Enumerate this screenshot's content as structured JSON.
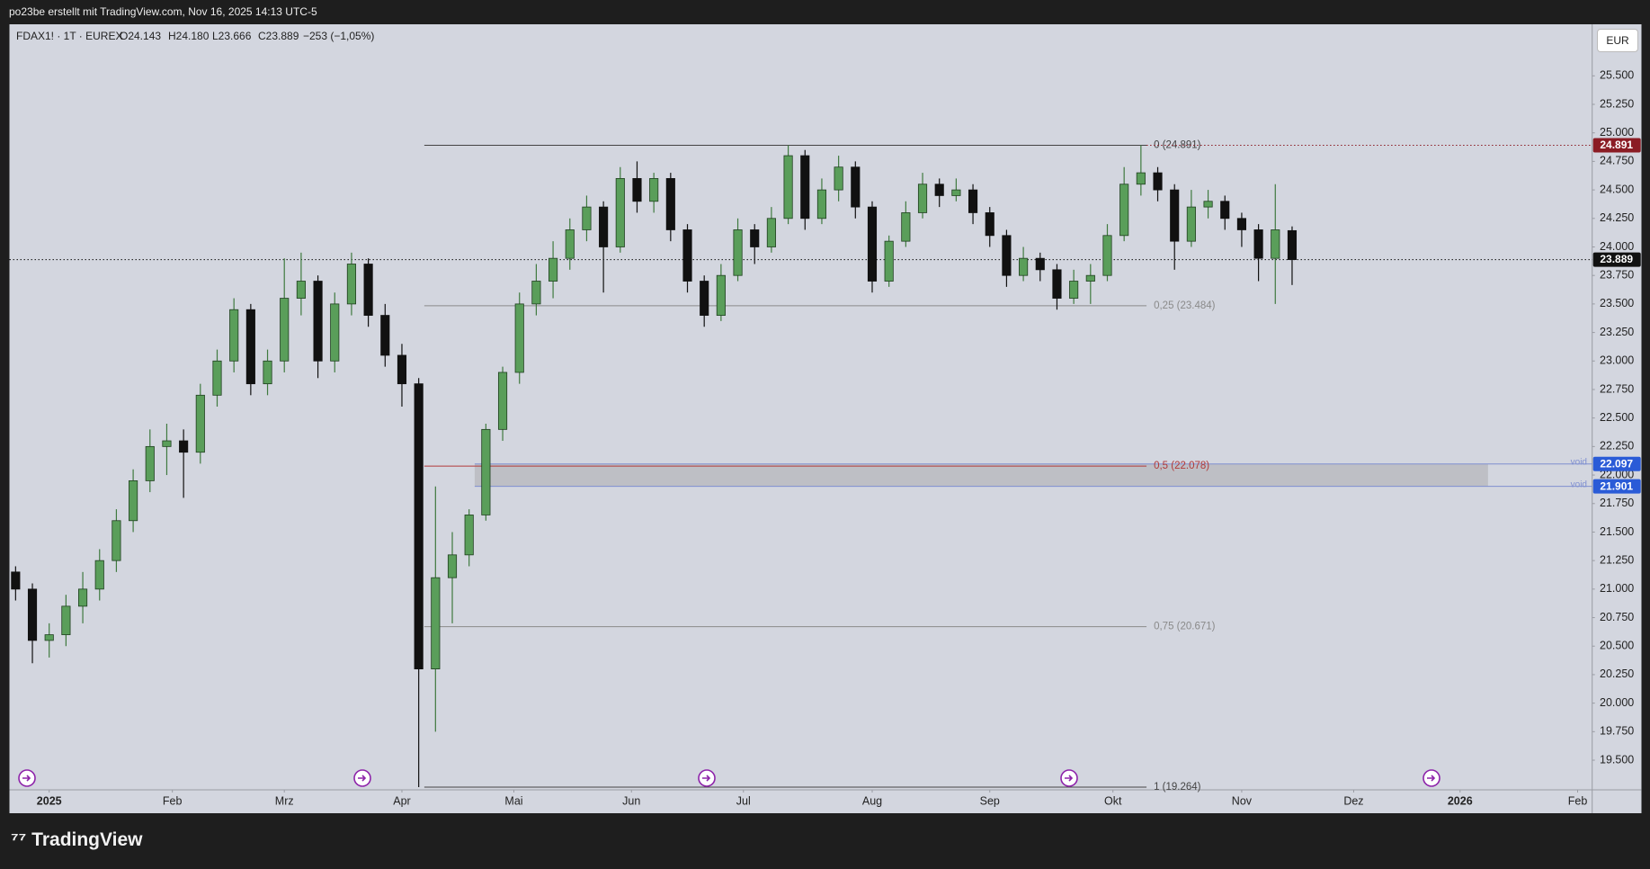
{
  "top_bar": {
    "text": "po23be erstellt mit TradingView.com, Nov 16, 2025 14:13 UTC-5"
  },
  "footer": {
    "logo": "TradingView"
  },
  "currency_button": "EUR",
  "chart_data": {
    "type": "candlestick",
    "header": {
      "symbol": "FDAX1! · 1T · EUREX",
      "open": "O24.143",
      "high": "H24.180",
      "low": "L23.666",
      "close": "C23.889",
      "change": "−253 (−1,05%)"
    },
    "up_color": "#5a9e5a",
    "down_color": "#111111",
    "x": [
      -6,
      -3,
      0,
      3,
      6,
      9,
      12,
      15,
      18,
      21,
      24,
      27,
      30,
      33,
      36,
      39,
      42,
      45,
      48,
      51,
      54,
      57,
      60,
      63,
      66,
      69,
      72,
      75,
      78,
      81,
      84,
      87,
      90,
      93,
      96,
      99,
      102,
      105,
      108,
      111,
      114,
      117,
      120,
      123,
      126,
      129,
      132,
      135,
      138,
      141,
      144,
      147,
      150,
      153,
      156,
      159,
      162,
      165,
      168,
      171,
      174,
      177,
      180,
      183,
      186,
      189,
      192,
      195,
      198,
      201,
      204,
      207,
      210,
      213,
      216,
      219,
      222
    ],
    "open": [
      21150,
      21000,
      20550,
      20600,
      20850,
      21000,
      21250,
      21600,
      21950,
      22250,
      22300,
      22200,
      22700,
      23000,
      23450,
      22800,
      23000,
      23550,
      23700,
      23000,
      23500,
      23850,
      23400,
      23050,
      22800,
      20300,
      21100,
      21300,
      21650,
      22400,
      22900,
      23500,
      23700,
      23900,
      24150,
      24350,
      24000,
      24600,
      24400,
      24600,
      24150,
      23700,
      23400,
      23750,
      24150,
      24000,
      24250,
      24800,
      24250,
      24500,
      24700,
      24350,
      23700,
      24050,
      24300,
      24550,
      24450,
      24500,
      24300,
      24100,
      23750,
      23900,
      23800,
      23550,
      23700,
      23750,
      24100,
      24550,
      24650,
      24500,
      24050,
      24350,
      24400,
      24250,
      24150,
      23900,
      24143
    ],
    "high": [
      21200,
      21050,
      20700,
      20950,
      21150,
      21350,
      21700,
      22050,
      22400,
      22450,
      22400,
      22800,
      23100,
      23550,
      23500,
      23100,
      23900,
      23950,
      23750,
      23600,
      23950,
      23900,
      23500,
      23150,
      22850,
      21900,
      21500,
      21700,
      22450,
      22950,
      23600,
      23850,
      24050,
      24250,
      24450,
      24400,
      24700,
      24750,
      24650,
      24650,
      24200,
      23750,
      23850,
      24250,
      24200,
      24350,
      24891,
      24850,
      24600,
      24800,
      24750,
      24400,
      24100,
      24400,
      24650,
      24600,
      24600,
      24550,
      24350,
      24150,
      24000,
      23950,
      23850,
      23800,
      23850,
      24200,
      24700,
      24891,
      24700,
      24550,
      24500,
      24500,
      24450,
      24300,
      24200,
      24550,
      24180
    ],
    "low": [
      20900,
      20350,
      20400,
      20500,
      20700,
      20900,
      21150,
      21500,
      21850,
      22000,
      21800,
      22100,
      22600,
      22900,
      22700,
      22700,
      22900,
      23400,
      22850,
      22900,
      23400,
      23300,
      22950,
      22600,
      19264,
      19750,
      20700,
      21200,
      21600,
      22300,
      22800,
      23400,
      23550,
      23800,
      24050,
      23600,
      23950,
      24300,
      24300,
      24050,
      23600,
      23300,
      23350,
      23700,
      23850,
      23950,
      24200,
      24150,
      24200,
      24400,
      24250,
      23600,
      23650,
      24000,
      24250,
      24350,
      24400,
      24200,
      24000,
      23650,
      23700,
      23700,
      23450,
      23500,
      23500,
      23700,
      24050,
      24450,
      24400,
      23800,
      24000,
      24250,
      24150,
      24000,
      23700,
      23500,
      23666
    ],
    "close": [
      21000,
      20550,
      20600,
      20850,
      21000,
      21250,
      21600,
      21950,
      22250,
      22300,
      22200,
      22700,
      23000,
      23450,
      22800,
      23000,
      23550,
      23700,
      23000,
      23500,
      23850,
      23400,
      23050,
      22800,
      20300,
      21100,
      21300,
      21650,
      22400,
      22900,
      23500,
      23700,
      23900,
      24150,
      24350,
      24000,
      24600,
      24400,
      24600,
      24150,
      23700,
      23400,
      23750,
      24150,
      24000,
      24250,
      24800,
      24250,
      24500,
      24700,
      24350,
      23700,
      24050,
      24300,
      24550,
      24450,
      24500,
      24300,
      24100,
      23750,
      23900,
      23800,
      23550,
      23700,
      23750,
      24100,
      24550,
      24650,
      24500,
      24050,
      24350,
      24400,
      24250,
      24150,
      23900,
      24150,
      23889
    ],
    "xlim": [
      -7.1,
      275.6
    ],
    "xticks": [
      {
        "value": 0,
        "label": "2025"
      },
      {
        "value": 22,
        "label": "Feb"
      },
      {
        "value": 42,
        "label": "Mrz"
      },
      {
        "value": 63,
        "label": "Apr"
      },
      {
        "value": 83,
        "label": "Mai"
      },
      {
        "value": 104,
        "label": "Jun"
      },
      {
        "value": 124,
        "label": "Jul"
      },
      {
        "value": 147,
        "label": "Aug"
      },
      {
        "value": 168,
        "label": "Sep"
      },
      {
        "value": 190,
        "label": "Okt"
      },
      {
        "value": 213,
        "label": "Nov"
      },
      {
        "value": 233,
        "label": "Dez"
      },
      {
        "value": 252,
        "label": "2026"
      },
      {
        "value": 273,
        "label": "Feb"
      }
    ],
    "ylim": [
      19240,
      25952
    ],
    "yticks": [
      {
        "value": 19500,
        "label": "19.500"
      },
      {
        "value": 19750,
        "label": "19.750"
      },
      {
        "value": 20000,
        "label": "20.000"
      },
      {
        "value": 20250,
        "label": "20.250"
      },
      {
        "value": 20500,
        "label": "20.500"
      },
      {
        "value": 20750,
        "label": "20.750"
      },
      {
        "value": 21000,
        "label": "21.000"
      },
      {
        "value": 21250,
        "label": "21.250"
      },
      {
        "value": 21500,
        "label": "21.500"
      },
      {
        "value": 21750,
        "label": "21.750"
      },
      {
        "value": 22000,
        "label": "22.000"
      },
      {
        "value": 22250,
        "label": "22.250"
      },
      {
        "value": 22500,
        "label": "22.500"
      },
      {
        "value": 22750,
        "label": "22.750"
      },
      {
        "value": 23000,
        "label": "23.000"
      },
      {
        "value": 23250,
        "label": "23.250"
      },
      {
        "value": 23500,
        "label": "23.500"
      },
      {
        "value": 23750,
        "label": "23.750"
      },
      {
        "value": 24000,
        "label": "24.000"
      },
      {
        "value": 24250,
        "label": "24.250"
      },
      {
        "value": 24500,
        "label": "24.500"
      },
      {
        "value": 24750,
        "label": "24.750"
      },
      {
        "value": 25000,
        "label": "25.000"
      },
      {
        "value": 25250,
        "label": "25.250"
      },
      {
        "value": 25500,
        "label": "25.500"
      }
    ],
    "grid": false,
    "fib_x": [
      67,
      196
    ],
    "fib_levels": [
      {
        "value": 24891,
        "label": "0 (24.891)",
        "color": "#444444"
      },
      {
        "value": 23484,
        "label": "0,25 (23.484)",
        "color": "#8a8a8a"
      },
      {
        "value": 22078,
        "label": "0,5 (22.078)",
        "color": "#b23a3a"
      },
      {
        "value": 20671,
        "label": "0,75 (20.671)",
        "color": "#8a8a8a"
      },
      {
        "value": 19264,
        "label": "1 (19.264)",
        "color": "#444444"
      }
    ],
    "zone": {
      "top": 22097,
      "bottom": 21901,
      "x": [
        76,
        257
      ],
      "label": "void",
      "color": "#7f8fd0"
    },
    "price_tags": [
      {
        "value": 24891,
        "label": "24.891",
        "color": "#8b1c24",
        "line": "dotted-partial"
      },
      {
        "value": 23889,
        "label": "23.889",
        "color": "#111111",
        "line": "dotted"
      },
      {
        "value": 22097,
        "label": "22.097",
        "color": "#2a5bd7",
        "line": "none"
      },
      {
        "value": 21901,
        "label": "21.901",
        "color": "#2a5bd7",
        "line": "none"
      }
    ]
  }
}
